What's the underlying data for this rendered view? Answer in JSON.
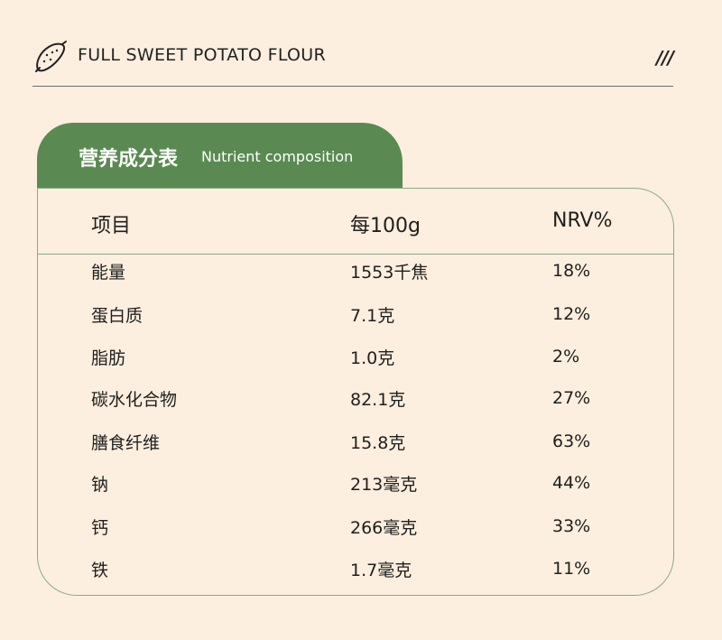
{
  "header": {
    "brand": "FULL SWEET POTATO FLOUR",
    "slashes": "///",
    "logo_icon": "sweet-potato-icon"
  },
  "tab": {
    "title_cn": "营养成分表",
    "title_en": "Nutrient composition",
    "color": "#5a8a52"
  },
  "table": {
    "headers": [
      "项目",
      "每100g",
      "NRV%"
    ],
    "rows": [
      {
        "item": "能量",
        "per100g": "1553千焦",
        "nrv": "18%"
      },
      {
        "item": "蛋白质",
        "per100g": "7.1克",
        "nrv": "12%"
      },
      {
        "item": "脂肪",
        "per100g": "1.0克",
        "nrv": "2%"
      },
      {
        "item": "碳水化合物",
        "per100g": "82.1克",
        "nrv": "27%"
      },
      {
        "item": "膳食纤维",
        "per100g": "15.8克",
        "nrv": "63%"
      },
      {
        "item": "钠",
        "per100g": "213毫克",
        "nrv": "44%"
      },
      {
        "item": "钙",
        "per100g": "266毫克",
        "nrv": "33%"
      },
      {
        "item": "铁",
        "per100g": "1.7毫克",
        "nrv": "11%"
      }
    ]
  },
  "colors": {
    "background": "#fcefdf",
    "border": "#8aab86",
    "accent": "#5a8a52"
  }
}
